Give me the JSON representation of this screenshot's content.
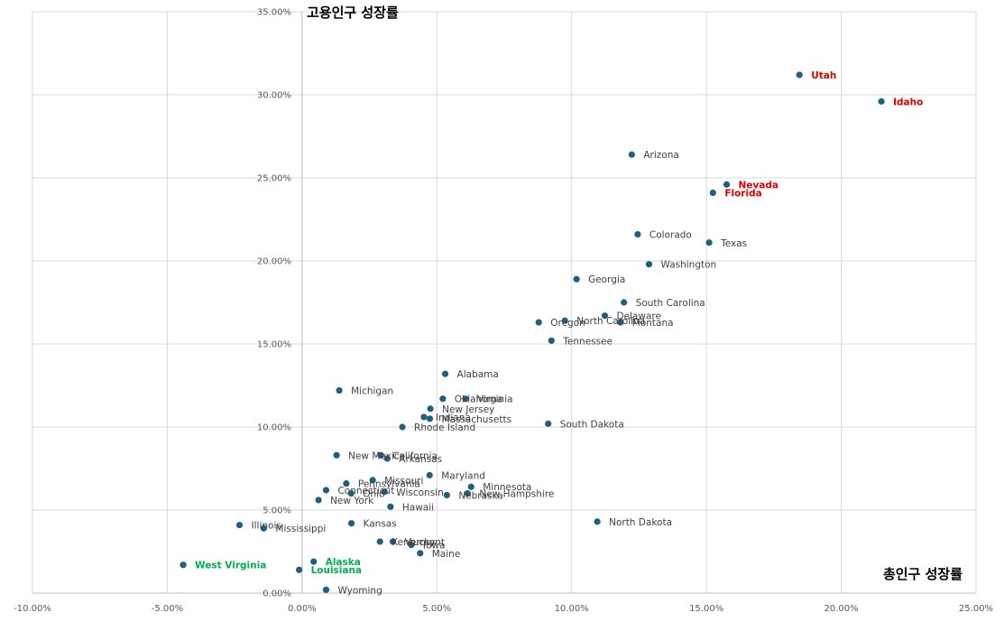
{
  "chart_data": {
    "type": "scatter",
    "xlabel": "총인구 성장률",
    "ylabel": "고용인구 성장률",
    "xlim": [
      -0.1,
      0.25
    ],
    "ylim": [
      0.0,
      0.35
    ],
    "x_ticks": [
      "-10.00%",
      "-5.00%",
      "0.00%",
      "5.00%",
      "10.00%",
      "15.00%",
      "20.00%",
      "25.00%"
    ],
    "y_ticks": [
      "0.00%",
      "5.00%",
      "10.00%",
      "15.00%",
      "20.00%",
      "25.00%",
      "30.00%",
      "35.00%"
    ],
    "grid": true,
    "colors": {
      "marker": "#1f5f7f",
      "highlight_red": "#e00000",
      "highlight_green": "#00b050",
      "default_label": "#404040"
    },
    "points": [
      {
        "name": "Utah",
        "x": 0.1845,
        "y": 0.312,
        "highlight": "red"
      },
      {
        "name": "Idaho",
        "x": 0.2149,
        "y": 0.296,
        "highlight": "red"
      },
      {
        "name": "Arizona",
        "x": 0.1223,
        "y": 0.264
      },
      {
        "name": "Nevada",
        "x": 0.1575,
        "y": 0.246,
        "highlight": "red"
      },
      {
        "name": "Florida",
        "x": 0.1524,
        "y": 0.241,
        "highlight": "red"
      },
      {
        "name": "Colorado",
        "x": 0.1245,
        "y": 0.216
      },
      {
        "name": "Texas",
        "x": 0.151,
        "y": 0.211
      },
      {
        "name": "Washington",
        "x": 0.1287,
        "y": 0.198
      },
      {
        "name": "Georgia",
        "x": 0.1018,
        "y": 0.189
      },
      {
        "name": "South Carolina",
        "x": 0.1194,
        "y": 0.175
      },
      {
        "name": "Delaware",
        "x": 0.1123,
        "y": 0.167
      },
      {
        "name": "North Carolina",
        "x": 0.0975,
        "y": 0.164
      },
      {
        "name": "Montana",
        "x": 0.1181,
        "y": 0.163
      },
      {
        "name": "Oregon",
        "x": 0.0878,
        "y": 0.163
      },
      {
        "name": "Tennessee",
        "x": 0.0925,
        "y": 0.152
      },
      {
        "name": "Alabama",
        "x": 0.0531,
        "y": 0.132
      },
      {
        "name": "Michigan",
        "x": 0.0138,
        "y": 0.122
      },
      {
        "name": "Oklahoma",
        "x": 0.0522,
        "y": 0.117
      },
      {
        "name": "Virginia",
        "x": 0.0606,
        "y": 0.117
      },
      {
        "name": "New Jersey",
        "x": 0.0476,
        "y": 0.111
      },
      {
        "name": "Indiana",
        "x": 0.0452,
        "y": 0.106
      },
      {
        "name": "Massachusetts",
        "x": 0.0474,
        "y": 0.105
      },
      {
        "name": "Rhode Island",
        "x": 0.0372,
        "y": 0.1
      },
      {
        "name": "South Dakota",
        "x": 0.0913,
        "y": 0.102
      },
      {
        "name": "New Mexico",
        "x": 0.0128,
        "y": 0.083
      },
      {
        "name": "California",
        "x": 0.0292,
        "y": 0.083
      },
      {
        "name": "Arkansas",
        "x": 0.0316,
        "y": 0.081
      },
      {
        "name": "Maryland",
        "x": 0.0473,
        "y": 0.071
      },
      {
        "name": "Missouri",
        "x": 0.0262,
        "y": 0.068
      },
      {
        "name": "Pennsylvania",
        "x": 0.0164,
        "y": 0.066
      },
      {
        "name": "Connecticut",
        "x": 0.0089,
        "y": 0.062
      },
      {
        "name": "Ohio",
        "x": 0.0182,
        "y": 0.06
      },
      {
        "name": "Wisconsin",
        "x": 0.0306,
        "y": 0.061
      },
      {
        "name": "Minnesota",
        "x": 0.0627,
        "y": 0.064
      },
      {
        "name": "New Hampshire",
        "x": 0.0614,
        "y": 0.06
      },
      {
        "name": "Nebraska",
        "x": 0.0537,
        "y": 0.059
      },
      {
        "name": "New York",
        "x": 0.0061,
        "y": 0.056
      },
      {
        "name": "Hawaii",
        "x": 0.0328,
        "y": 0.052
      },
      {
        "name": "Illinois",
        "x": -0.0232,
        "y": 0.041
      },
      {
        "name": "Mississippi",
        "x": -0.0142,
        "y": 0.039
      },
      {
        "name": "Kansas",
        "x": 0.0183,
        "y": 0.042
      },
      {
        "name": "North Dakota",
        "x": 0.1095,
        "y": 0.043
      },
      {
        "name": "Kentucky",
        "x": 0.0289,
        "y": 0.031
      },
      {
        "name": "Vermont",
        "x": 0.0337,
        "y": 0.031
      },
      {
        "name": "Iowa",
        "x": 0.0405,
        "y": 0.029
      },
      {
        "name": "Maine",
        "x": 0.0438,
        "y": 0.024
      },
      {
        "name": "Alaska",
        "x": 0.0043,
        "y": 0.019,
        "highlight": "green"
      },
      {
        "name": "West Virginia",
        "x": -0.0441,
        "y": 0.017,
        "highlight": "green"
      },
      {
        "name": "Louisiana",
        "x": -0.0011,
        "y": 0.014,
        "highlight": "green"
      },
      {
        "name": "Wyoming",
        "x": 0.0089,
        "y": 0.002
      }
    ]
  }
}
